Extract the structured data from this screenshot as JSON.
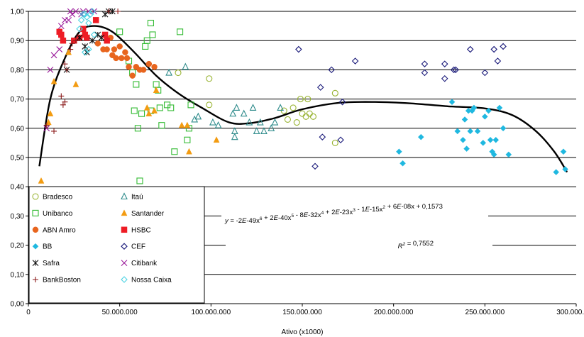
{
  "chart_data": {
    "type": "scatter",
    "title": "",
    "xlabel": "Ativo (x1000)",
    "ylabel": "",
    "xlim": [
      0,
      300000000
    ],
    "ylim": [
      0,
      1
    ],
    "x_ticks": [
      "0",
      "50.000.000",
      "100.000.000",
      "150.000.000",
      "200.000.000",
      "250.000.000",
      "300.000.000"
    ],
    "y_ticks": [
      "0,00",
      "0,10",
      "0,20",
      "0,30",
      "0,40",
      "0,50",
      "0,60",
      "0,70",
      "0,80",
      "0,90",
      "1,00"
    ],
    "grid": "horizontal",
    "legend_position": "bottom-left",
    "series": [
      {
        "name": "Bradesco",
        "marker": "circle-open",
        "color": "#99b433",
        "points": [
          [
            82000000,
            0.79
          ],
          [
            99000000,
            0.77
          ],
          [
            99000000,
            0.68
          ],
          [
            140000000,
            0.66
          ],
          [
            142000000,
            0.63
          ],
          [
            145000000,
            0.67
          ],
          [
            147000000,
            0.62
          ],
          [
            149000000,
            0.7
          ],
          [
            150000000,
            0.65
          ],
          [
            152000000,
            0.64
          ],
          [
            153000000,
            0.7
          ],
          [
            154000000,
            0.65
          ],
          [
            156000000,
            0.64
          ],
          [
            168000000,
            0.72
          ],
          [
            168000000,
            0.55
          ]
        ]
      },
      {
        "name": "Itaú",
        "marker": "triangle-open",
        "color": "#2e8b8b",
        "points": [
          [
            77000000,
            0.79
          ],
          [
            86000000,
            0.81
          ],
          [
            91000000,
            0.63
          ],
          [
            93000000,
            0.64
          ],
          [
            101000000,
            0.62
          ],
          [
            104000000,
            0.61
          ],
          [
            112000000,
            0.65
          ],
          [
            113000000,
            0.59
          ],
          [
            113000000,
            0.57
          ],
          [
            114000000,
            0.67
          ],
          [
            118000000,
            0.65
          ],
          [
            121000000,
            0.62
          ],
          [
            123000000,
            0.67
          ],
          [
            125000000,
            0.59
          ],
          [
            127000000,
            0.62
          ],
          [
            129000000,
            0.59
          ],
          [
            133000000,
            0.6
          ],
          [
            135000000,
            0.62
          ],
          [
            138000000,
            0.67
          ]
        ]
      },
      {
        "name": "Unibanco",
        "marker": "square-open",
        "color": "#33bb33",
        "points": [
          [
            50000000,
            0.93
          ],
          [
            55000000,
            0.83
          ],
          [
            57000000,
            0.79
          ],
          [
            58000000,
            0.66
          ],
          [
            59000000,
            0.75
          ],
          [
            60000000,
            0.6
          ],
          [
            61000000,
            0.42
          ],
          [
            62000000,
            0.65
          ],
          [
            64000000,
            0.88
          ],
          [
            65000000,
            0.9
          ],
          [
            67000000,
            0.96
          ],
          [
            67000000,
            0.66
          ],
          [
            68000000,
            0.92
          ],
          [
            70000000,
            0.75
          ],
          [
            71000000,
            0.73
          ],
          [
            72000000,
            0.67
          ],
          [
            73000000,
            0.61
          ],
          [
            76000000,
            0.68
          ],
          [
            78000000,
            0.67
          ],
          [
            80000000,
            0.52
          ],
          [
            83000000,
            0.93
          ],
          [
            87000000,
            0.56
          ],
          [
            88000000,
            0.6
          ],
          [
            89000000,
            0.68
          ]
        ]
      },
      {
        "name": "Santander",
        "marker": "triangle-filled",
        "color": "#f39c12",
        "points": [
          [
            7000000,
            0.42
          ],
          [
            11000000,
            0.62
          ],
          [
            12000000,
            0.65
          ],
          [
            14000000,
            0.76
          ],
          [
            22000000,
            0.86
          ],
          [
            26000000,
            0.75
          ],
          [
            65000000,
            0.67
          ],
          [
            66000000,
            0.65
          ],
          [
            69000000,
            0.66
          ],
          [
            70000000,
            0.73
          ],
          [
            84000000,
            0.61
          ],
          [
            87000000,
            0.61
          ],
          [
            88000000,
            0.52
          ],
          [
            103000000,
            0.56
          ]
        ]
      },
      {
        "name": "ABN Amro",
        "marker": "circle-filled",
        "color": "#e8651e",
        "points": [
          [
            38000000,
            0.89
          ],
          [
            41000000,
            0.87
          ],
          [
            43000000,
            0.87
          ],
          [
            45000000,
            0.91
          ],
          [
            46000000,
            0.85
          ],
          [
            47000000,
            0.87
          ],
          [
            48000000,
            0.84
          ],
          [
            50000000,
            0.88
          ],
          [
            51000000,
            0.84
          ],
          [
            53000000,
            0.86
          ],
          [
            54000000,
            0.84
          ],
          [
            55000000,
            0.81
          ],
          [
            57000000,
            0.78
          ],
          [
            59000000,
            0.81
          ],
          [
            61000000,
            0.8
          ],
          [
            63000000,
            0.8
          ],
          [
            66000000,
            0.82
          ],
          [
            69000000,
            0.81
          ]
        ]
      },
      {
        "name": "HSBC",
        "marker": "square-filled",
        "color": "#ee1c25",
        "points": [
          [
            17000000,
            0.93
          ],
          [
            18000000,
            0.92
          ],
          [
            19000000,
            0.9
          ],
          [
            25000000,
            0.9
          ],
          [
            28000000,
            0.91
          ],
          [
            30000000,
            0.94
          ],
          [
            31000000,
            0.92
          ],
          [
            32000000,
            0.91
          ],
          [
            37000000,
            0.97
          ],
          [
            42000000,
            0.92
          ],
          [
            43000000,
            0.9
          ]
        ]
      },
      {
        "name": "BB",
        "marker": "diamond-filled",
        "color": "#1fb8e0",
        "points": [
          [
            203000000,
            0.52
          ],
          [
            205000000,
            0.48
          ],
          [
            215000000,
            0.57
          ],
          [
            232000000,
            0.69
          ],
          [
            235000000,
            0.59
          ],
          [
            238000000,
            0.56
          ],
          [
            239000000,
            0.63
          ],
          [
            240000000,
            0.53
          ],
          [
            241000000,
            0.66
          ],
          [
            242000000,
            0.59
          ],
          [
            243000000,
            0.66
          ],
          [
            244000000,
            0.67
          ],
          [
            246000000,
            0.59
          ],
          [
            249000000,
            0.55
          ],
          [
            250000000,
            0.64
          ],
          [
            252000000,
            0.66
          ],
          [
            253000000,
            0.56
          ],
          [
            254000000,
            0.52
          ],
          [
            255000000,
            0.51
          ],
          [
            256000000,
            0.56
          ],
          [
            258000000,
            0.67
          ],
          [
            260000000,
            0.6
          ],
          [
            263000000,
            0.51
          ],
          [
            289000000,
            0.45
          ],
          [
            293000000,
            0.52
          ],
          [
            294000000,
            0.46
          ]
        ]
      },
      {
        "name": "CEF",
        "marker": "diamond-open",
        "color": "#1a1a7a",
        "points": [
          [
            148000000,
            0.87
          ],
          [
            157000000,
            0.47
          ],
          [
            160000000,
            0.74
          ],
          [
            161000000,
            0.57
          ],
          [
            166000000,
            0.8
          ],
          [
            171000000,
            0.56
          ],
          [
            172000000,
            0.69
          ],
          [
            179000000,
            0.83
          ],
          [
            217000000,
            0.82
          ],
          [
            217000000,
            0.79
          ],
          [
            228000000,
            0.77
          ],
          [
            228000000,
            0.82
          ],
          [
            233000000,
            0.8
          ],
          [
            234000000,
            0.8
          ],
          [
            242000000,
            0.87
          ],
          [
            250000000,
            0.79
          ],
          [
            255000000,
            0.87
          ],
          [
            257000000,
            0.83
          ],
          [
            260000000,
            0.88
          ]
        ]
      },
      {
        "name": "Safra",
        "marker": "asterisk",
        "color": "#111111",
        "points": [
          [
            21000000,
            0.8
          ],
          [
            28000000,
            0.91
          ],
          [
            31000000,
            0.88
          ],
          [
            32000000,
            0.86
          ],
          [
            35000000,
            0.9
          ],
          [
            38000000,
            0.92
          ],
          [
            40000000,
            0.91
          ],
          [
            42000000,
            0.99
          ],
          [
            44000000,
            1.0
          ],
          [
            46000000,
            1.0
          ]
        ]
      },
      {
        "name": "Citibank",
        "marker": "x",
        "color": "#9b1c9b",
        "points": [
          [
            10000000,
            0.6
          ],
          [
            12000000,
            0.8
          ],
          [
            14000000,
            0.85
          ],
          [
            17000000,
            0.87
          ],
          [
            18000000,
            0.95
          ],
          [
            20000000,
            0.97
          ],
          [
            22000000,
            0.97
          ],
          [
            23000000,
            1.0
          ],
          [
            24000000,
            0.99
          ],
          [
            26000000,
            1.0
          ],
          [
            29000000,
            0.99
          ],
          [
            30000000,
            1.0
          ],
          [
            33000000,
            1.0
          ],
          [
            36000000,
            1.0
          ]
        ]
      },
      {
        "name": "BankBoston",
        "marker": "plus",
        "color": "#8b1a1a",
        "points": [
          [
            10000000,
            0.61
          ],
          [
            14000000,
            0.59
          ],
          [
            18000000,
            0.71
          ],
          [
            19000000,
            0.68
          ],
          [
            20000000,
            0.69
          ],
          [
            20000000,
            0.82
          ],
          [
            21000000,
            0.8
          ],
          [
            23000000,
            0.87
          ],
          [
            24000000,
            0.89
          ],
          [
            26000000,
            0.9
          ],
          [
            44000000,
            1.0
          ],
          [
            49000000,
            1.0
          ]
        ]
      },
      {
        "name": "Nossa Caixa",
        "marker": "diamond-open",
        "color": "#4cd3e3",
        "points": [
          [
            28000000,
            0.94
          ],
          [
            29000000,
            0.97
          ],
          [
            30000000,
            0.99
          ],
          [
            31000000,
            0.86
          ],
          [
            31000000,
            0.99
          ],
          [
            32000000,
            0.98
          ],
          [
            33000000,
            0.96
          ],
          [
            33000000,
            0.87
          ],
          [
            34000000,
            0.99
          ],
          [
            35000000,
            1.0
          ],
          [
            36000000,
            0.92
          ]
        ]
      }
    ],
    "trendline": {
      "type": "polynomial",
      "degree": 6,
      "coefficients": [
        -2e-49,
        2e-40,
        -8e-32,
        2e-23,
        -1e-15,
        6e-08,
        0.1573
      ],
      "x_range": [
        6000000,
        295000000
      ],
      "color": "#000000"
    },
    "annotations": {
      "equation_parts": [
        {
          "base": "y",
          "sup": "",
          "italic": true
        },
        {
          "base": " = -2",
          "sup": "",
          "italic": false
        },
        {
          "base": "E",
          "sup": "",
          "italic": true
        },
        {
          "base": "-49x",
          "sup": "6",
          "italic": false
        },
        {
          "base": " + 2",
          "sup": "",
          "italic": false
        },
        {
          "base": "E",
          "sup": "",
          "italic": true
        },
        {
          "base": "-40x",
          "sup": "5",
          "italic": false
        },
        {
          "base": " - 8",
          "sup": "",
          "italic": false
        },
        {
          "base": "E",
          "sup": "",
          "italic": true
        },
        {
          "base": "-32x",
          "sup": "4",
          "italic": false
        },
        {
          "base": " + 2",
          "sup": "",
          "italic": false
        },
        {
          "base": "E",
          "sup": "",
          "italic": true
        },
        {
          "base": "-23x",
          "sup": "3",
          "italic": false
        },
        {
          "base": " - 1",
          "sup": "",
          "italic": false
        },
        {
          "base": "E",
          "sup": "",
          "italic": true
        },
        {
          "base": "-15x",
          "sup": "2",
          "italic": false
        },
        {
          "base": " + 6",
          "sup": "",
          "italic": false
        },
        {
          "base": "E",
          "sup": "",
          "italic": true
        },
        {
          "base": "-08x + 0,1573",
          "sup": "",
          "italic": false
        }
      ],
      "r2_parts": [
        {
          "base": "R",
          "sup": "2",
          "italic": true
        },
        {
          "base": " = 0,7552",
          "sup": "",
          "italic": false
        }
      ]
    }
  }
}
